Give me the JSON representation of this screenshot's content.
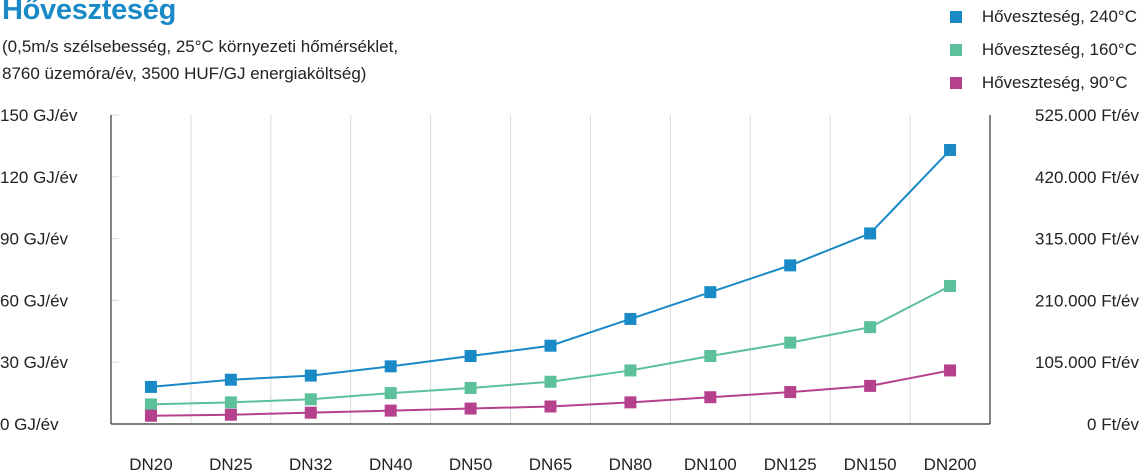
{
  "chart_data": {
    "type": "line",
    "title": "Hőveszteség",
    "subtitle_lines": [
      "(0,5m/s szélsebesség, 25°C környezeti hőmérséklet,",
      "8760 üzemóra/év, 3500 HUF/GJ energiaköltség)"
    ],
    "categories": [
      "DN20",
      "DN25",
      "DN32",
      "DN40",
      "DN50",
      "DN65",
      "DN80",
      "DN100",
      "DN125",
      "DN150",
      "DN200"
    ],
    "y_left": {
      "ticks": [
        "0 GJ/év",
        "30 GJ/év",
        "60 GJ/év",
        "90 GJ/év",
        "120 GJ/év",
        "150 GJ/év"
      ],
      "ylim": [
        0,
        150
      ]
    },
    "y_right": {
      "ticks": [
        "0 Ft/év",
        "105.000 Ft/év",
        "210.000 Ft/év",
        "315.000 Ft/év",
        "420.000 Ft/év",
        "525.000 Ft/év"
      ],
      "ylim": [
        0,
        525000
      ]
    },
    "grid": "vertical",
    "legend_position": "top-right",
    "series": [
      {
        "name": "Hőveszteség, 240°C",
        "color": "#1a8ac6",
        "values": [
          18,
          21.5,
          23.5,
          28,
          33,
          38,
          51,
          64,
          77,
          92.5,
          133
        ]
      },
      {
        "name": "Hőveszteség, 160°C",
        "color": "#5cc09b",
        "values": [
          9.5,
          10.5,
          12,
          15,
          17.5,
          20.5,
          26,
          33,
          39.5,
          47,
          67
        ]
      },
      {
        "name": "Hőveszteség, 90°C",
        "color": "#b5418d",
        "values": [
          4,
          4.5,
          5.5,
          6.5,
          7.5,
          8.5,
          10.5,
          13,
          15.5,
          18.5,
          26
        ]
      }
    ]
  }
}
